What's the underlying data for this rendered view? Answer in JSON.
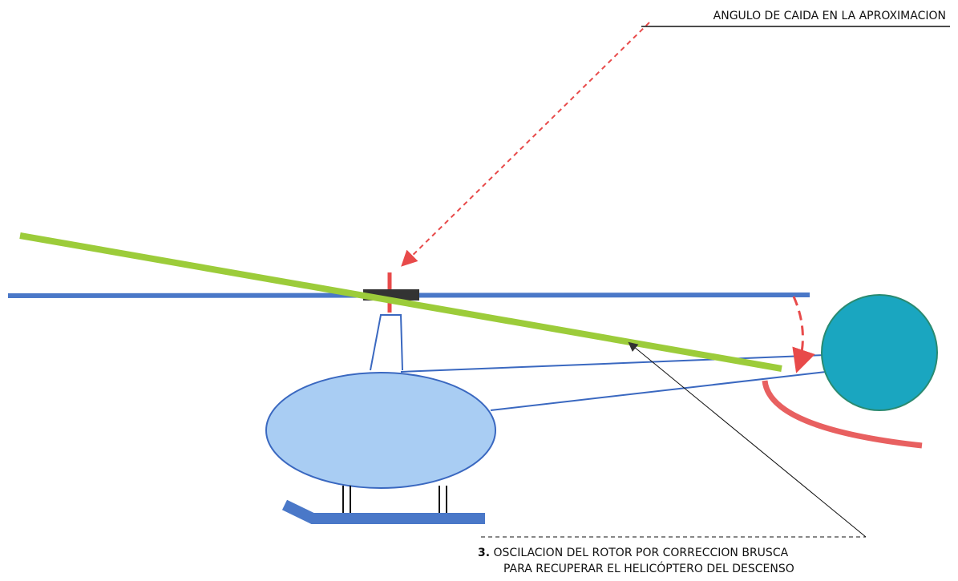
{
  "labels": {
    "top": "ANGULO DE CAIDA EN LA APROXIMACION",
    "bottom_number": "3.",
    "bottom_line1": "OSCILACION DEL ROTOR POR CORRECCION BRUSCA",
    "bottom_line2": "PARA RECUPERAR EL HELICÓPTERO DEL DESCENSO"
  }
}
